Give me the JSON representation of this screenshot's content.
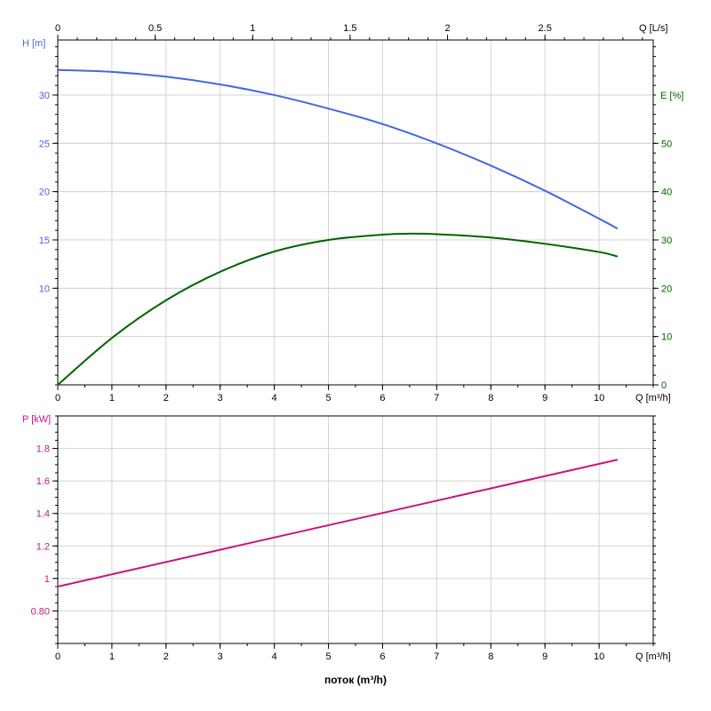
{
  "colors": {
    "head": "#4169e1",
    "efficiency": "#006400",
    "power": "#c71585",
    "grid": "#d3d3d3",
    "axis": "#000000"
  },
  "chart_data": [
    {
      "type": "line",
      "name": "upper",
      "xlabel": "Q [m³/h]",
      "x_ticks": [
        0,
        1,
        2,
        3,
        4,
        5,
        6,
        7,
        8,
        9,
        10
      ],
      "xlim": [
        0,
        11
      ],
      "secondary_x": {
        "label": "Q [L/s]",
        "ticks": [
          0,
          0.5,
          1,
          1.5,
          2,
          2.5
        ],
        "tick_labels": [
          "0",
          "0.5",
          "1",
          "1.5",
          "2",
          "2.5"
        ]
      },
      "left_axis": {
        "label": "H [m]",
        "ylim": [
          0,
          35.7
        ],
        "ticks": [
          10,
          15,
          20,
          25,
          30
        ]
      },
      "right_axis": {
        "label": "E [%]",
        "ylim": [
          0,
          71.4
        ],
        "ticks": [
          0,
          10,
          20,
          30,
          40,
          50
        ]
      },
      "grid": true,
      "series": [
        {
          "name": "H",
          "axis": "left",
          "x": [
            0,
            1,
            2,
            3,
            4,
            5,
            6,
            7,
            8,
            9,
            10,
            10.33
          ],
          "y": [
            32.6,
            32.4,
            31.9,
            31.1,
            30.0,
            28.6,
            27.0,
            25.0,
            22.7,
            20.1,
            17.2,
            16.2
          ]
        },
        {
          "name": "E",
          "axis": "right",
          "x": [
            0,
            1,
            2,
            3,
            4,
            5,
            6,
            6.5,
            7,
            8,
            9,
            10,
            10.33
          ],
          "y": [
            0,
            9.7,
            17.5,
            23.4,
            27.6,
            30.0,
            31.1,
            31.3,
            31.2,
            30.5,
            29.2,
            27.5,
            26.6
          ]
        }
      ]
    },
    {
      "type": "line",
      "name": "lower",
      "xlabel": "Q [m³/h]",
      "x_ticks": [
        0,
        1,
        2,
        3,
        4,
        5,
        6,
        7,
        8,
        9,
        10
      ],
      "xlim": [
        0,
        11
      ],
      "left_axis": {
        "label": "P [kW]",
        "ylim": [
          0.6,
          2.0
        ],
        "ticks": [
          0.8,
          1.0,
          1.2,
          1.4,
          1.6,
          1.8
        ],
        "tick_labels": [
          "0.80",
          "1",
          "1.2",
          "1.4",
          "1.6",
          "1.8"
        ]
      },
      "grid": true,
      "series": [
        {
          "name": "P",
          "axis": "left",
          "x": [
            0,
            10.33
          ],
          "y": [
            0.95,
            1.73
          ]
        }
      ]
    }
  ],
  "caption": "поток (m³/h)"
}
